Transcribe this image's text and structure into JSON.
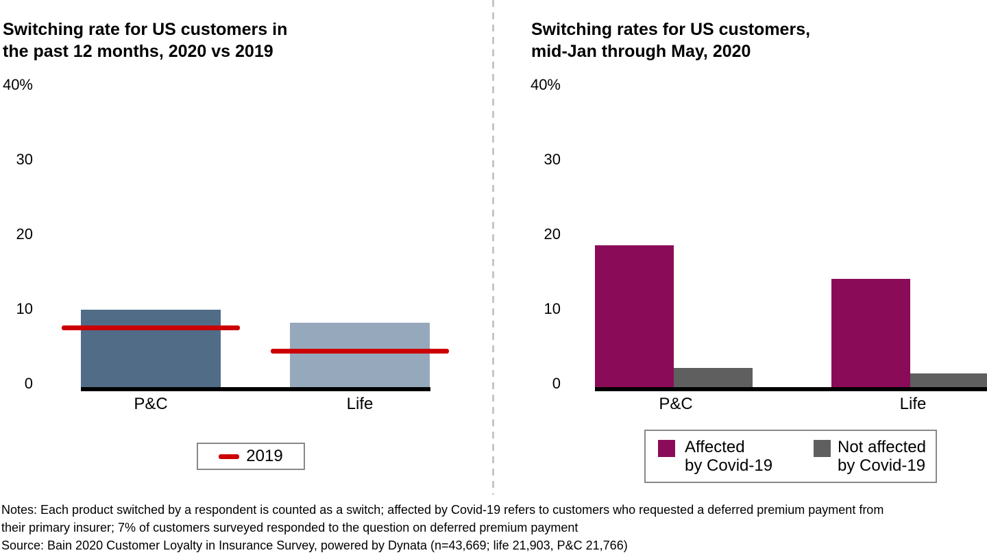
{
  "chart_data": [
    {
      "type": "bar",
      "title_lines": [
        "Switching rate for US customers in",
        "the past 12 months, 2020 vs 2019"
      ],
      "categories": [
        "P&C",
        "Life"
      ],
      "series": [
        {
          "name": "2020",
          "marker": "bar",
          "values": [
            10.4,
            8.6
          ],
          "colors": [
            "#506c86",
            "#96a9bc"
          ]
        },
        {
          "name": "2019",
          "marker": "line",
          "values": [
            8.0,
            4.9
          ],
          "color": "#cc0000"
        }
      ],
      "ylabel": "",
      "xlabel": "",
      "ylim": [
        0,
        40
      ],
      "yticks": [
        0,
        10,
        20,
        30,
        40
      ],
      "ytick_labels": [
        "0",
        "10",
        "20",
        "30",
        "40%"
      ],
      "grid": false,
      "legend_position": "bottom-center",
      "legend": [
        {
          "label": "2019",
          "marker": "line",
          "color": "#cc0000"
        }
      ]
    },
    {
      "type": "bar",
      "title_lines": [
        "Switching rates for US customers,",
        "mid-Jan through May, 2020"
      ],
      "categories": [
        "P&C",
        "Life"
      ],
      "series": [
        {
          "name": "Affected by Covid-19",
          "marker": "bar",
          "values": [
            19.0,
            14.5
          ],
          "color": "#8a0c58"
        },
        {
          "name": "Not affected by Covid-19",
          "marker": "bar",
          "values": [
            2.6,
            1.8
          ],
          "color": "#5f5f5f"
        }
      ],
      "ylabel": "",
      "xlabel": "",
      "ylim": [
        0,
        40
      ],
      "yticks": [
        0,
        10,
        20,
        30,
        40
      ],
      "ytick_labels": [
        "0",
        "10",
        "20",
        "30",
        "40%"
      ],
      "grid": false,
      "legend_position": "bottom-center",
      "legend": [
        {
          "label_lines": [
            "Affected",
            "by Covid-19"
          ],
          "marker": "square",
          "color": "#8a0c58"
        },
        {
          "label_lines": [
            "Not affected",
            "by Covid-19"
          ],
          "marker": "square",
          "color": "#5f5f5f"
        }
      ]
    }
  ],
  "footer": {
    "notes": "Notes: Each product switched by a respondent is counted as a switch; affected by Covid-19 refers to customers who requested a deferred premium payment from\ntheir primary insurer; 7% of customers surveyed responded to the question on deferred premium payment",
    "source": "Source: Bain 2020 Customer Loyalty in Insurance Survey, powered by Dynata (n=43,669; life 21,903, P&C 21,766)"
  }
}
